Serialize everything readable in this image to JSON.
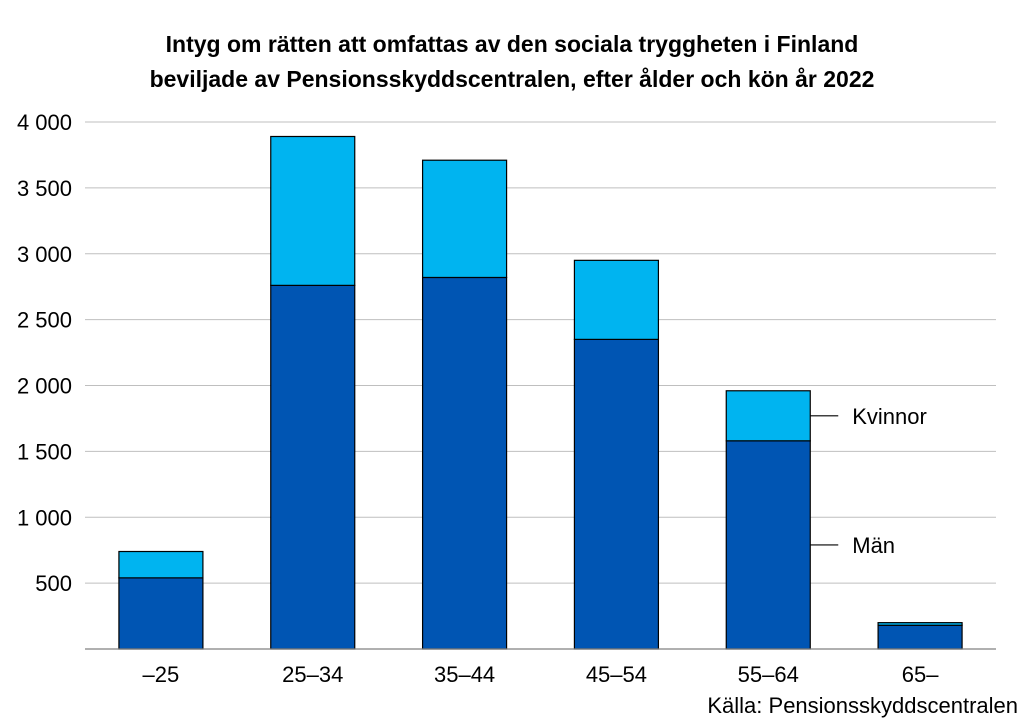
{
  "chart_data": {
    "type": "bar",
    "stacked": true,
    "title_lines": [
      "Intyg om rätten att omfattas av den sociala tryggheten i Finland",
      "beviljade av Pensionsskyddscentralen, efter ålder och kön år 2022"
    ],
    "categories": [
      "–25",
      "25–34",
      "35–44",
      "45–54",
      "55–64",
      "65–"
    ],
    "series": [
      {
        "name": "Män",
        "values": [
          540,
          2760,
          2820,
          2350,
          1580,
          180
        ],
        "color": "#0055b3"
      },
      {
        "name": "Kvinnor",
        "values": [
          200,
          1130,
          890,
          600,
          380,
          20
        ],
        "color": "#00b4f0"
      }
    ],
    "ylim": [
      0,
      4000
    ],
    "yticks": [
      500,
      1000,
      1500,
      2000,
      2500,
      3000,
      3500,
      4000
    ],
    "ytick_labels": [
      "500",
      "1 000",
      "1 500",
      "2 000",
      "2 500",
      "3 000",
      "3 500",
      "4 000"
    ],
    "grid": true,
    "legend_placement": "right, inline labels",
    "source": "Källa: Pensionsskyddscentralen"
  }
}
